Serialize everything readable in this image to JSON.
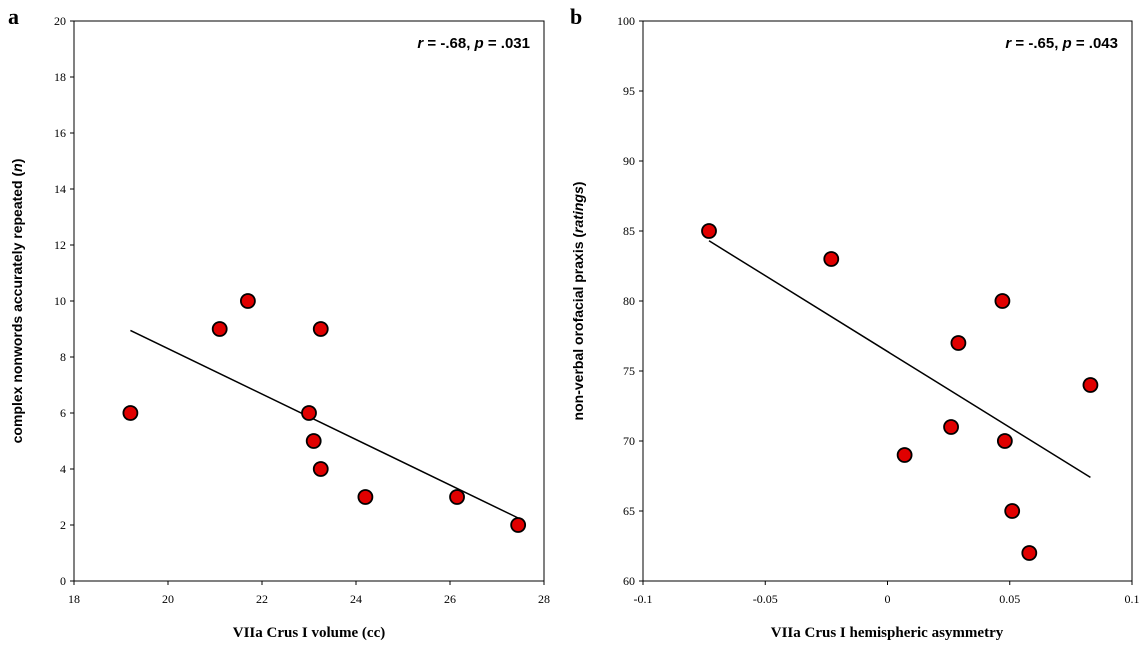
{
  "chart_data": [
    {
      "type": "scatter",
      "panel_label": "a",
      "xlabel": "VIIa Crus I volume (cc)",
      "ylabel_parts": [
        "complex nonwords accurately repeated (",
        "n",
        ")"
      ],
      "annotation_parts": [
        "r",
        " = -.68, ",
        "p",
        " = .031"
      ],
      "xlim": [
        18,
        28
      ],
      "ylim": [
        0,
        20
      ],
      "xticks": [
        18,
        20,
        22,
        24,
        26,
        28
      ],
      "yticks": [
        0,
        2,
        4,
        6,
        8,
        10,
        12,
        14,
        16,
        18,
        20
      ],
      "xtick_labels": [
        "18",
        "20",
        "22",
        "24",
        "26",
        "28"
      ],
      "ytick_labels": [
        "0",
        "2",
        "4",
        "6",
        "8",
        "10",
        "12",
        "14",
        "16",
        "18",
        "20"
      ],
      "points": [
        {
          "x": 19.2,
          "y": 6
        },
        {
          "x": 21.1,
          "y": 9
        },
        {
          "x": 21.7,
          "y": 10
        },
        {
          "x": 23.0,
          "y": 6
        },
        {
          "x": 23.1,
          "y": 5
        },
        {
          "x": 23.25,
          "y": 9
        },
        {
          "x": 23.25,
          "y": 4
        },
        {
          "x": 24.2,
          "y": 3
        },
        {
          "x": 26.15,
          "y": 3
        },
        {
          "x": 27.45,
          "y": 2
        }
      ],
      "trendline": {
        "x": [
          19.2,
          27.45
        ],
        "y": [
          8.95,
          2.25
        ]
      },
      "marker_color": "#e00000",
      "grid": false
    },
    {
      "type": "scatter",
      "panel_label": "b",
      "xlabel": "VIIa Crus I hemispheric asymmetry",
      "ylabel_parts": [
        "non-verbal orofacial praxis (",
        "ratings",
        ")"
      ],
      "annotation_parts": [
        "r",
        " = -.65, ",
        "p",
        " = .043"
      ],
      "xlim": [
        -0.1,
        0.1
      ],
      "ylim": [
        60,
        100
      ],
      "xticks": [
        -0.1,
        -0.05,
        0,
        0.05,
        0.1
      ],
      "yticks": [
        60,
        65,
        70,
        75,
        80,
        85,
        90,
        95,
        100
      ],
      "xtick_labels": [
        "-0.1",
        "-0.05",
        "0",
        "0.05",
        "0.1"
      ],
      "ytick_labels": [
        "60",
        "65",
        "70",
        "75",
        "80",
        "85",
        "90",
        "95",
        "100"
      ],
      "points": [
        {
          "x": -0.073,
          "y": 85
        },
        {
          "x": -0.023,
          "y": 83
        },
        {
          "x": 0.007,
          "y": 69
        },
        {
          "x": 0.026,
          "y": 71
        },
        {
          "x": 0.029,
          "y": 77
        },
        {
          "x": 0.047,
          "y": 80
        },
        {
          "x": 0.048,
          "y": 70
        },
        {
          "x": 0.051,
          "y": 65
        },
        {
          "x": 0.058,
          "y": 62
        },
        {
          "x": 0.083,
          "y": 74
        }
      ],
      "trendline": {
        "x": [
          -0.073,
          0.083
        ],
        "y": [
          84.3,
          67.4
        ]
      },
      "marker_color": "#e00000",
      "grid": false
    }
  ]
}
